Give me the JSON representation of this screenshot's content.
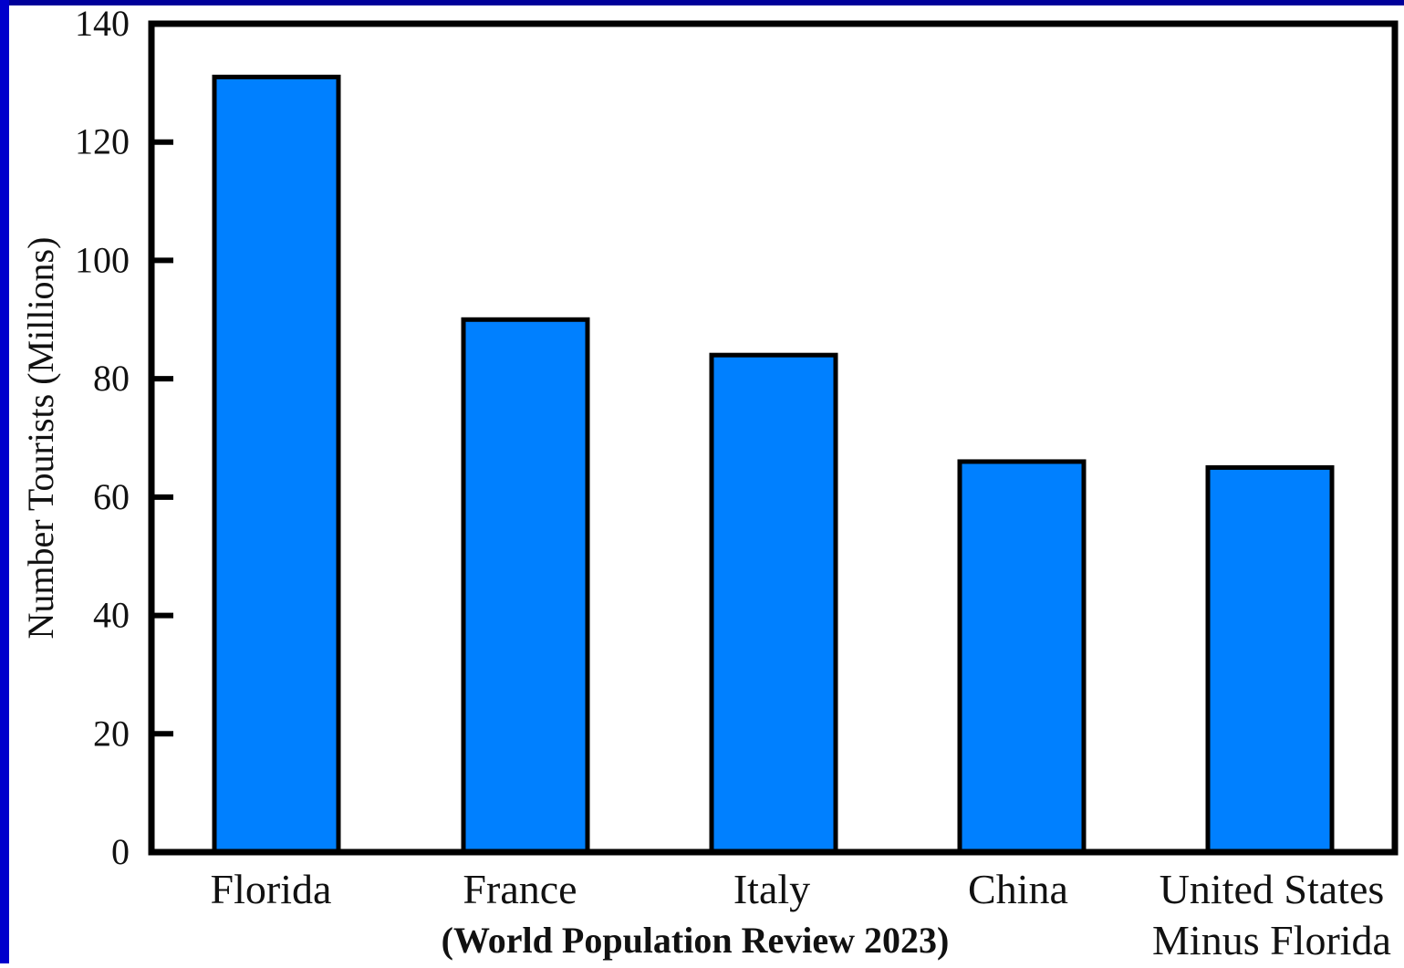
{
  "colors": {
    "bar_fill": "#0080ff",
    "bar_stroke": "#000000",
    "frame_left": "#0000cc",
    "frame_top": "#00009a",
    "text": "#111111"
  },
  "chart_data": {
    "type": "bar",
    "categories": [
      "Florida",
      "France",
      "Italy",
      "China",
      "United States"
    ],
    "category_sublabels": [
      "",
      "",
      "",
      "",
      "Minus Florida"
    ],
    "values": [
      131,
      90,
      84,
      66,
      65
    ],
    "ylabel": "Number Tourists (Millions)",
    "xlabel": "",
    "ylim": [
      0,
      140
    ],
    "yticks": [
      0,
      20,
      40,
      60,
      80,
      100,
      120,
      140
    ],
    "grid": false,
    "legend": "none"
  },
  "caption": "(World Population Review 2023)"
}
